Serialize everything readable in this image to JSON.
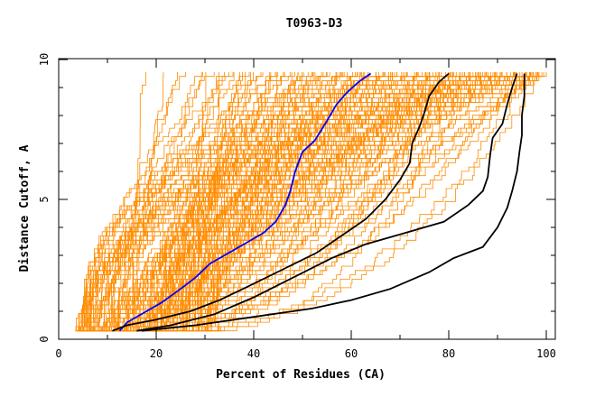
{
  "chart_data": {
    "type": "line",
    "title": "T0963-D3",
    "xlabel": "Percent of Residues (CA)",
    "ylabel": "Distance Cutoff, A",
    "xlim": [
      0,
      100
    ],
    "ylim": [
      0,
      10
    ],
    "xticks": [
      "0",
      "20",
      "40",
      "60",
      "80",
      "100"
    ],
    "yticks": [
      "0",
      "5",
      "10"
    ],
    "background_bundle": {
      "color": "#ff8c00",
      "description_count": 180,
      "start_x_range": [
        4,
        32
      ],
      "end_x_range": [
        17,
        100
      ]
    },
    "series": [
      {
        "color": "#0000ff",
        "points": [
          [
            12.5,
            0.3
          ],
          [
            14,
            0.6
          ],
          [
            17,
            0.9
          ],
          [
            21,
            1.3
          ],
          [
            25,
            1.8
          ],
          [
            28,
            2.2
          ],
          [
            31,
            2.7
          ],
          [
            34,
            3.0
          ],
          [
            38,
            3.4
          ],
          [
            42,
            3.8
          ],
          [
            44.5,
            4.2
          ],
          [
            46.5,
            4.8
          ],
          [
            47.5,
            5.3
          ],
          [
            48.5,
            6.0
          ],
          [
            50,
            6.7
          ],
          [
            52.5,
            7.1
          ],
          [
            55,
            7.8
          ],
          [
            57,
            8.4
          ],
          [
            59,
            8.8
          ],
          [
            61.5,
            9.2
          ],
          [
            64,
            9.5
          ]
        ]
      },
      {
        "color": "#000000",
        "points": [
          [
            11,
            0.3
          ],
          [
            14,
            0.5
          ],
          [
            20,
            0.7
          ],
          [
            27,
            1.0
          ],
          [
            33,
            1.4
          ],
          [
            39,
            1.9
          ],
          [
            46,
            2.5
          ],
          [
            53,
            3.1
          ],
          [
            58,
            3.7
          ],
          [
            63,
            4.3
          ],
          [
            67,
            5.0
          ],
          [
            70,
            5.7
          ],
          [
            72,
            6.3
          ],
          [
            72.5,
            7.0
          ],
          [
            74,
            7.6
          ],
          [
            75,
            8.1
          ],
          [
            76,
            8.7
          ],
          [
            78,
            9.2
          ],
          [
            80,
            9.5
          ]
        ]
      },
      {
        "color": "#000000",
        "points": [
          [
            16,
            0.3
          ],
          [
            23,
            0.5
          ],
          [
            32,
            0.9
          ],
          [
            40,
            1.5
          ],
          [
            48,
            2.2
          ],
          [
            56,
            2.9
          ],
          [
            63,
            3.4
          ],
          [
            71,
            3.8
          ],
          [
            79,
            4.2
          ],
          [
            84,
            4.8
          ],
          [
            87,
            5.3
          ],
          [
            88,
            5.8
          ],
          [
            88.5,
            6.6
          ],
          [
            89,
            7.2
          ],
          [
            91,
            7.7
          ],
          [
            92,
            8.4
          ],
          [
            93,
            9.0
          ],
          [
            94,
            9.5
          ]
        ]
      },
      {
        "color": "#000000",
        "points": [
          [
            17,
            0.3
          ],
          [
            28,
            0.5
          ],
          [
            40,
            0.8
          ],
          [
            52,
            1.1
          ],
          [
            60,
            1.4
          ],
          [
            68,
            1.8
          ],
          [
            76,
            2.4
          ],
          [
            81,
            2.9
          ],
          [
            84,
            3.1
          ],
          [
            87,
            3.3
          ],
          [
            90,
            4.0
          ],
          [
            92,
            4.7
          ],
          [
            93,
            5.3
          ],
          [
            94,
            6.0
          ],
          [
            94.5,
            6.7
          ],
          [
            95,
            7.3
          ],
          [
            95,
            8.0
          ],
          [
            95.5,
            8.7
          ],
          [
            95.5,
            9.5
          ]
        ]
      }
    ]
  }
}
